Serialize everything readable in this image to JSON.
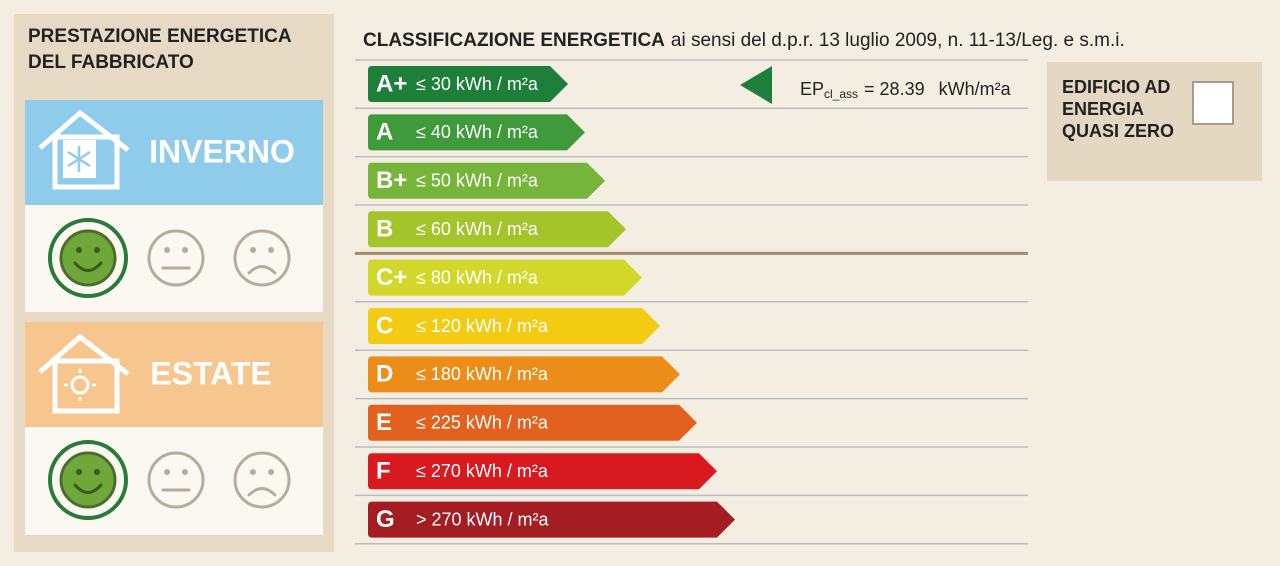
{
  "left": {
    "title": "PRESTAZIONE ENERGETICA DEL FABBRICATO",
    "winter": "INVERNO",
    "summer": "ESTATE"
  },
  "header": {
    "title": "CLASSIFICAZIONE ENERGETICA",
    "subtitle": "ai sensi del d.p.r. 13 luglio 2009, n. 11-13/Leg. e s.m.i."
  },
  "classes": [
    {
      "label": "A+",
      "range": "≤ 30 kWh / m²a",
      "color": "#1e7f3a"
    },
    {
      "label": "A",
      "range": "≤ 40 kWh / m²a",
      "color": "#3f9a3c"
    },
    {
      "label": "B+",
      "range": "≤ 50 kWh / m²a",
      "color": "#76b43a"
    },
    {
      "label": "B",
      "range": "≤ 60 kWh / m²a",
      "color": "#a4c42c"
    },
    {
      "label": "C+",
      "range": "≤ 80 kWh / m²a",
      "color": "#d2d82a"
    },
    {
      "label": "C",
      "range": "≤ 120 kWh / m²a",
      "color": "#f2cc12"
    },
    {
      "label": "D",
      "range": "≤ 180 kWh / m²a",
      "color": "#eb8d18"
    },
    {
      "label": "E",
      "range": "≤ 225 kWh / m²a",
      "color": "#e2611e"
    },
    {
      "label": "F",
      "range": "≤ 270 kWh / m²a",
      "color": "#d8191f"
    },
    {
      "label": "G",
      "range": "> 270 kWh / m²a",
      "color": "#a31d22"
    }
  ],
  "indicator": {
    "symbol": "EP",
    "subscript": "cl_ass",
    "value": "= 28.39",
    "unit": "kWh/m²a"
  },
  "nzeb": {
    "label": "EDIFICIO AD ENERGIA QUASI ZERO"
  }
}
